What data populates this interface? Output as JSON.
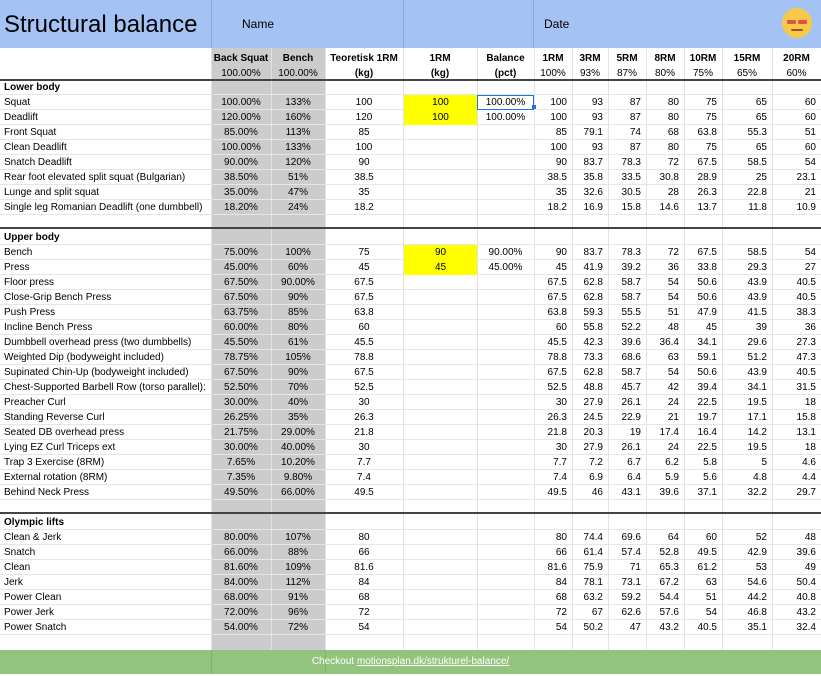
{
  "title": "Structural balance",
  "name_label": "Name",
  "date_label": "Date",
  "avatar_icon": "grinning-face-icon",
  "headers": {
    "back_squat": "Back Squat",
    "back_squat_pct": "100.00%",
    "bench": "Bench",
    "bench_pct": "100.00%",
    "teoretisk": "Teoretisk 1RM",
    "teoretisk_unit": "(kg)",
    "onerm": "1RM",
    "onerm_unit": "(kg)",
    "balance": "Balance",
    "balance_unit": "(pct)",
    "rm_cols": [
      {
        "label": "1RM",
        "pct": "100%"
      },
      {
        "label": "3RM",
        "pct": "93%"
      },
      {
        "label": "5RM",
        "pct": "87%"
      },
      {
        "label": "8RM",
        "pct": "80%"
      },
      {
        "label": "10RM",
        "pct": "75%"
      },
      {
        "label": "15RM",
        "pct": "65%"
      },
      {
        "label": "20RM",
        "pct": "60%"
      }
    ]
  },
  "sections": [
    {
      "name": "Lower body",
      "rows": [
        {
          "name": "Squat",
          "bs": "100.00%",
          "bench": "133%",
          "teo": "100",
          "onerm": "100",
          "balance": "100.00%",
          "rm": [
            "100",
            "93",
            "87",
            "80",
            "75",
            "65",
            "60"
          ],
          "yellow": true,
          "selected": true
        },
        {
          "name": "Deadlift",
          "bs": "120.00%",
          "bench": "160%",
          "teo": "120",
          "onerm": "100",
          "balance": "100.00%",
          "rm": [
            "100",
            "93",
            "87",
            "80",
            "75",
            "65",
            "60"
          ],
          "yellow": true
        },
        {
          "name": "Front Squat",
          "bs": "85.00%",
          "bench": "113%",
          "teo": "85",
          "onerm": "",
          "balance": "",
          "rm": [
            "85",
            "79.1",
            "74",
            "68",
            "63.8",
            "55.3",
            "51"
          ]
        },
        {
          "name": "Clean Deadlift",
          "bs": "100.00%",
          "bench": "133%",
          "teo": "100",
          "onerm": "",
          "balance": "",
          "rm": [
            "100",
            "93",
            "87",
            "80",
            "75",
            "65",
            "60"
          ]
        },
        {
          "name": "Snatch Deadlift",
          "bs": "90.00%",
          "bench": "120%",
          "teo": "90",
          "onerm": "",
          "balance": "",
          "rm": [
            "90",
            "83.7",
            "78.3",
            "72",
            "67.5",
            "58.5",
            "54"
          ]
        },
        {
          "name": "Rear foot elevated split squat (Bulgarian)",
          "bs": "38.50%",
          "bench": "51%",
          "teo": "38.5",
          "onerm": "",
          "balance": "",
          "rm": [
            "38.5",
            "35.8",
            "33.5",
            "30.8",
            "28.9",
            "25",
            "23.1"
          ]
        },
        {
          "name": "Lunge and split squat",
          "bs": "35.00%",
          "bench": "47%",
          "teo": "35",
          "onerm": "",
          "balance": "",
          "rm": [
            "35",
            "32.6",
            "30.5",
            "28",
            "26.3",
            "22.8",
            "21"
          ]
        },
        {
          "name": "Single leg Romanian Deadlift (one dumbbell)",
          "bs": "18.20%",
          "bench": "24%",
          "teo": "18.2",
          "onerm": "",
          "balance": "",
          "rm": [
            "18.2",
            "16.9",
            "15.8",
            "14.6",
            "13.7",
            "11.8",
            "10.9"
          ]
        }
      ]
    },
    {
      "name": "Upper body",
      "rows": [
        {
          "name": "Bench",
          "bs": "75.00%",
          "bench": "100%",
          "teo": "75",
          "onerm": "90",
          "balance": "90.00%",
          "rm": [
            "90",
            "83.7",
            "78.3",
            "72",
            "67.5",
            "58.5",
            "54"
          ],
          "yellow": true
        },
        {
          "name": "Press",
          "bs": "45.00%",
          "bench": "60%",
          "teo": "45",
          "onerm": "45",
          "balance": "45.00%",
          "rm": [
            "45",
            "41.9",
            "39.2",
            "36",
            "33.8",
            "29.3",
            "27"
          ],
          "yellow": true
        },
        {
          "name": "Floor press",
          "bs": "67.50%",
          "bench": "90.00%",
          "teo": "67.5",
          "onerm": "",
          "balance": "",
          "rm": [
            "67.5",
            "62.8",
            "58.7",
            "54",
            "50.6",
            "43.9",
            "40.5"
          ]
        },
        {
          "name": "Close-Grip Bench Press",
          "bs": "67.50%",
          "bench": "90%",
          "teo": "67.5",
          "onerm": "",
          "balance": "",
          "rm": [
            "67.5",
            "62.8",
            "58.7",
            "54",
            "50.6",
            "43.9",
            "40.5"
          ]
        },
        {
          "name": "Push Press",
          "bs": "63.75%",
          "bench": "85%",
          "teo": "63.8",
          "onerm": "",
          "balance": "",
          "rm": [
            "63.8",
            "59.3",
            "55.5",
            "51",
            "47.9",
            "41.5",
            "38.3"
          ]
        },
        {
          "name": "Incline Bench Press",
          "bs": "60.00%",
          "bench": "80%",
          "teo": "60",
          "onerm": "",
          "balance": "",
          "rm": [
            "60",
            "55.8",
            "52.2",
            "48",
            "45",
            "39",
            "36"
          ]
        },
        {
          "name": "Dumbbell overhead press (two dumbbells)",
          "bs": "45.50%",
          "bench": "61%",
          "teo": "45.5",
          "onerm": "",
          "balance": "",
          "rm": [
            "45.5",
            "42.3",
            "39.6",
            "36.4",
            "34.1",
            "29.6",
            "27.3"
          ]
        },
        {
          "name": "Weighted Dip (bodyweight included)",
          "bs": "78.75%",
          "bench": "105%",
          "teo": "78.8",
          "onerm": "",
          "balance": "",
          "rm": [
            "78.8",
            "73.3",
            "68.6",
            "63",
            "59.1",
            "51.2",
            "47.3"
          ]
        },
        {
          "name": "Supinated Chin-Up (bodyweight included)",
          "bs": "67.50%",
          "bench": "90%",
          "teo": "67.5",
          "onerm": "",
          "balance": "",
          "rm": [
            "67.5",
            "62.8",
            "58.7",
            "54",
            "50.6",
            "43.9",
            "40.5"
          ]
        },
        {
          "name": "Chest-Supported Barbell Row (torso parallel):",
          "bs": "52.50%",
          "bench": "70%",
          "teo": "52.5",
          "onerm": "",
          "balance": "",
          "rm": [
            "52.5",
            "48.8",
            "45.7",
            "42",
            "39.4",
            "34.1",
            "31.5"
          ]
        },
        {
          "name": "Preacher Curl",
          "bs": "30.00%",
          "bench": "40%",
          "teo": "30",
          "onerm": "",
          "balance": "",
          "rm": [
            "30",
            "27.9",
            "26.1",
            "24",
            "22.5",
            "19.5",
            "18"
          ]
        },
        {
          "name": "Standing Reverse Curl",
          "bs": "26.25%",
          "bench": "35%",
          "teo": "26.3",
          "onerm": "",
          "balance": "",
          "rm": [
            "26.3",
            "24.5",
            "22.9",
            "21",
            "19.7",
            "17.1",
            "15.8"
          ]
        },
        {
          "name": "Seated DB overhead press",
          "bs": "21.75%",
          "bench": "29.00%",
          "teo": "21.8",
          "onerm": "",
          "balance": "",
          "rm": [
            "21.8",
            "20.3",
            "19",
            "17.4",
            "16.4",
            "14.2",
            "13.1"
          ]
        },
        {
          "name": "Lying EZ Curl Triceps ext",
          "bs": "30.00%",
          "bench": "40.00%",
          "teo": "30",
          "onerm": "",
          "balance": "",
          "rm": [
            "30",
            "27.9",
            "26.1",
            "24",
            "22.5",
            "19.5",
            "18"
          ]
        },
        {
          "name": "Trap 3 Exercise (8RM)",
          "bs": "7.65%",
          "bench": "10.20%",
          "teo": "7.7",
          "onerm": "",
          "balance": "",
          "rm": [
            "7.7",
            "7.2",
            "6.7",
            "6.2",
            "5.8",
            "5",
            "4.6"
          ]
        },
        {
          "name": "External rotation (8RM)",
          "bs": "7.35%",
          "bench": "9.80%",
          "teo": "7.4",
          "onerm": "",
          "balance": "",
          "rm": [
            "7.4",
            "6.9",
            "6.4",
            "5.9",
            "5.6",
            "4.8",
            "4.4"
          ]
        },
        {
          "name": "Behind Neck Press",
          "bs": "49.50%",
          "bench": "66.00%",
          "teo": "49.5",
          "onerm": "",
          "balance": "",
          "rm": [
            "49.5",
            "46",
            "43.1",
            "39.6",
            "37.1",
            "32.2",
            "29.7"
          ]
        }
      ]
    },
    {
      "name": "Olympic lifts",
      "rows": [
        {
          "name": "Clean & Jerk",
          "bs": "80.00%",
          "bench": "107%",
          "teo": "80",
          "onerm": "",
          "balance": "",
          "rm": [
            "80",
            "74.4",
            "69.6",
            "64",
            "60",
            "52",
            "48"
          ]
        },
        {
          "name": "Snatch",
          "bs": "66.00%",
          "bench": "88%",
          "teo": "66",
          "onerm": "",
          "balance": "",
          "rm": [
            "66",
            "61.4",
            "57.4",
            "52.8",
            "49.5",
            "42.9",
            "39.6"
          ]
        },
        {
          "name": "Clean",
          "bs": "81.60%",
          "bench": "109%",
          "teo": "81.6",
          "onerm": "",
          "balance": "",
          "rm": [
            "81.6",
            "75.9",
            "71",
            "65.3",
            "61.2",
            "53",
            "49"
          ]
        },
        {
          "name": "Jerk",
          "bs": "84.00%",
          "bench": "112%",
          "teo": "84",
          "onerm": "",
          "balance": "",
          "rm": [
            "84",
            "78.1",
            "73.1",
            "67.2",
            "63",
            "54.6",
            "50.4"
          ]
        },
        {
          "name": "Power Clean",
          "bs": "68.00%",
          "bench": "91%",
          "teo": "68",
          "onerm": "",
          "balance": "",
          "rm": [
            "68",
            "63.2",
            "59.2",
            "54.4",
            "51",
            "44.2",
            "40.8"
          ]
        },
        {
          "name": "Power Jerk",
          "bs": "72.00%",
          "bench": "96%",
          "teo": "72",
          "onerm": "",
          "balance": "",
          "rm": [
            "72",
            "67",
            "62.6",
            "57.6",
            "54",
            "46.8",
            "43.2"
          ]
        },
        {
          "name": "Power Snatch",
          "bs": "54.00%",
          "bench": "72%",
          "teo": "54",
          "onerm": "",
          "balance": "",
          "rm": [
            "54",
            "50.2",
            "47",
            "43.2",
            "40.5",
            "35.1",
            "32.4"
          ]
        }
      ]
    }
  ],
  "footer": {
    "prefix": "Checkout ",
    "link_text": "motionsplan.dk/strukturel-balance/"
  },
  "colors": {
    "header_bg": "#a4c2f4",
    "grey_col": "#cccccc",
    "yellow": "#ffff00",
    "footer_bg": "#93c47d"
  }
}
